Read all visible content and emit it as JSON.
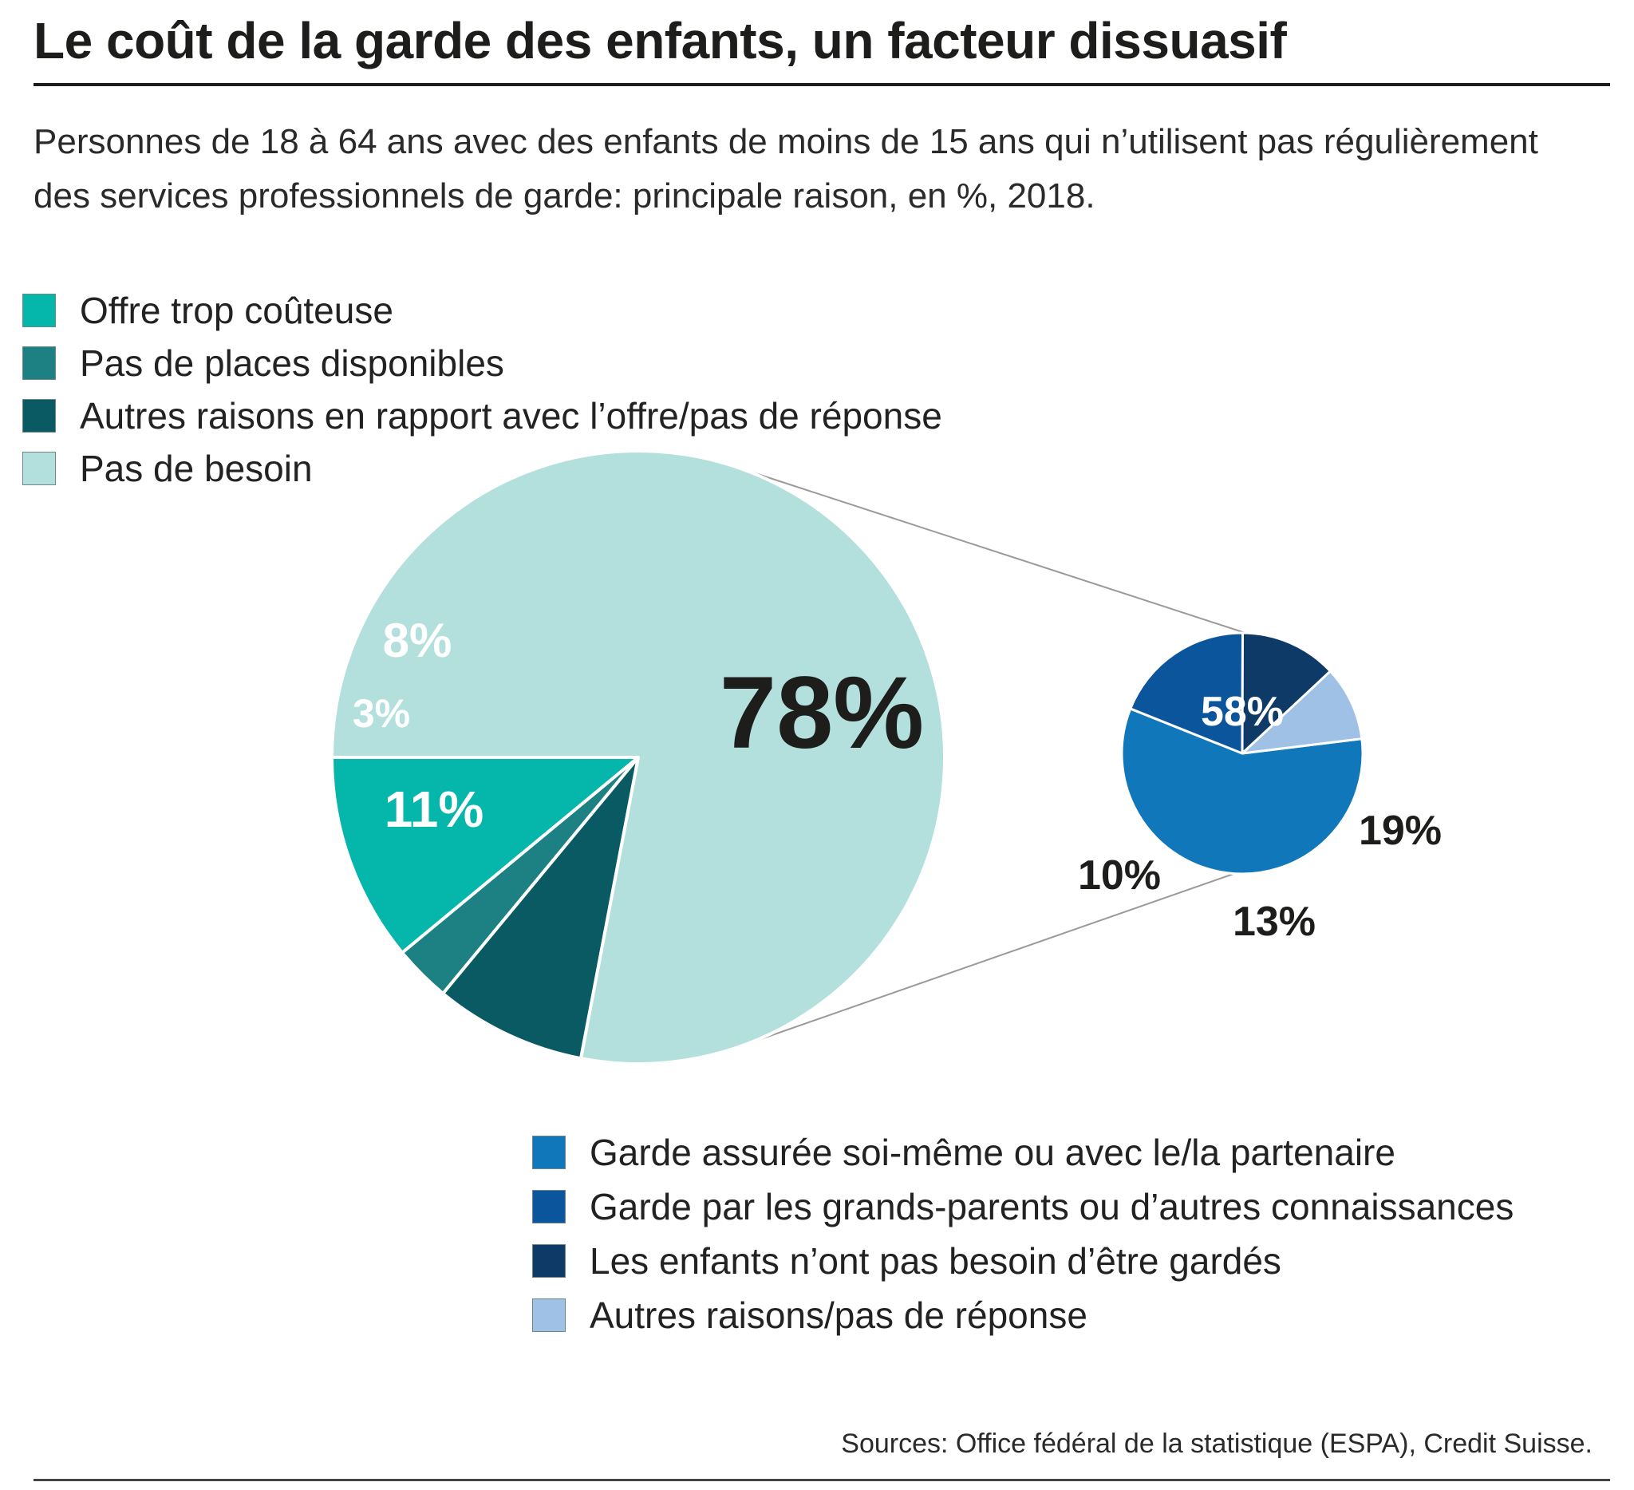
{
  "header": {
    "title": "Le coût de la garde des enfants, un facteur dissuasif",
    "subtitle": "Personnes de 18 à 64 ans avec des enfants de moins de 15 ans qui n’utilisent pas réguliè­rement des services professionnels de garde: principale raison, en %, 2018."
  },
  "footer": {
    "source": "Sources: Office fédéral de la statistique (ESPA), Credit Suisse."
  },
  "chart_data": [
    {
      "type": "pie",
      "slices": [
        {
          "label": "Offre trop coûteuse",
          "value": 11,
          "display": "11%",
          "color": "#05b6ab"
        },
        {
          "label": "Pas de places disponibles",
          "value": 3,
          "display": "3%",
          "color": "#1d8083"
        },
        {
          "label": "Autres raisons en rapport avec l’offre/pas de réponse",
          "value": 8,
          "display": "8%",
          "color": "#0a5a63"
        },
        {
          "label": "Pas de besoin",
          "value": 78,
          "display": "78%",
          "color": "#b3e0dc"
        }
      ]
    },
    {
      "type": "pie",
      "breakdown_of": "Pas de besoin",
      "slices": [
        {
          "label": "Garde assurée soi-même ou avec le/la partenaire",
          "value": 58,
          "display": "58%",
          "color": "#1177bb"
        },
        {
          "label": "Garde par les grands-parents ou d’autres connaissances",
          "value": 19,
          "display": "19%",
          "color": "#0a559c"
        },
        {
          "label": "Les enfants n’ont pas besoin d’être gardés",
          "value": 13,
          "display": "13%",
          "color": "#0d3a66"
        },
        {
          "label": "Autres raisons/pas de réponse",
          "value": 10,
          "display": "10%",
          "color": "#9fc1e6"
        }
      ]
    }
  ]
}
